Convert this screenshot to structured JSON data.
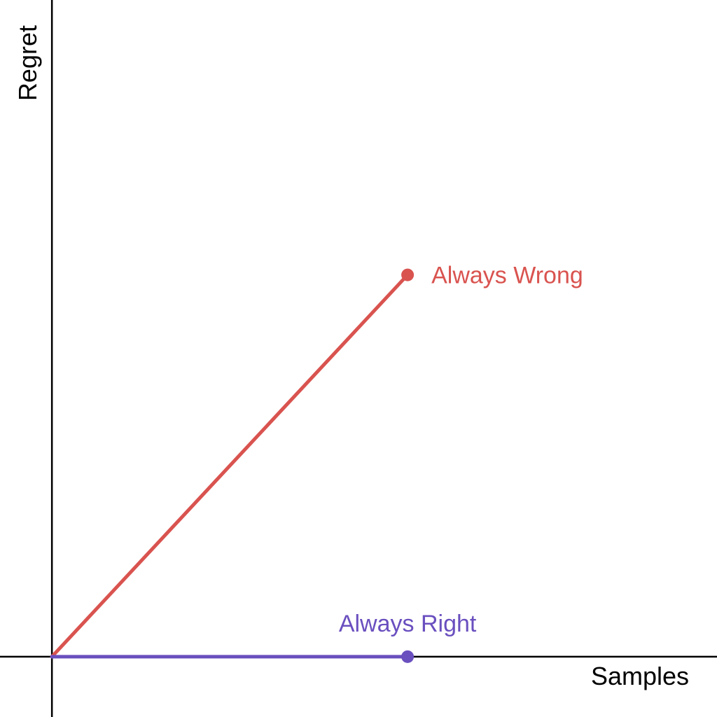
{
  "chart_data": {
    "type": "line",
    "xlabel": "Samples",
    "ylabel": "Regret",
    "xlim": [
      -0.146,
      1.87
    ],
    "ylim": [
      -0.158,
      1.72
    ],
    "grid": false,
    "legend": "none",
    "series": [
      {
        "name": "Always Wrong",
        "color": "#d9534f",
        "x": [
          0,
          1
        ],
        "y": [
          0,
          1
        ]
      },
      {
        "name": "Always Right",
        "color": "#6a4fbf",
        "x": [
          0,
          1
        ],
        "y": [
          0,
          0
        ]
      }
    ]
  }
}
